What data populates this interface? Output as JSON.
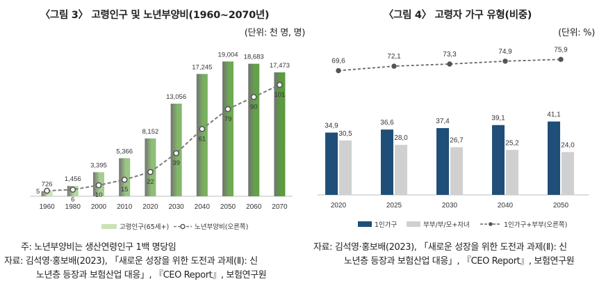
{
  "chart_data": [
    {
      "type": "bar",
      "title": "〈그림 3〉 고령인구 및 노년부양비(1960~2070년)",
      "unit_label": "(단위: 천 명, 명)",
      "categories": [
        "1960",
        "1980",
        "2000",
        "2010",
        "2020",
        "2030",
        "2040",
        "2050",
        "2060",
        "2070"
      ],
      "series": [
        {
          "name": "고령인구(65세+)",
          "type": "bar",
          "axis": "left",
          "values": [
            726,
            1456,
            3395,
            5366,
            8152,
            13056,
            17245,
            19004,
            18683,
            17473
          ],
          "value_labels": [
            "726",
            "1,456",
            "3,395",
            "5,366",
            "8,152",
            "13,056",
            "17,245",
            "19,004",
            "18,683",
            "17,473"
          ]
        },
        {
          "name": "노년부양비(오른쪽)",
          "type": "line",
          "axis": "right",
          "values": [
            5,
            6,
            10,
            15,
            22,
            39,
            61,
            79,
            90,
            101
          ],
          "value_labels": [
            "5",
            "6",
            "10",
            "15",
            "22",
            "39",
            "61",
            "79",
            "90",
            "101"
          ]
        }
      ],
      "ylim_left": [
        0,
        21000
      ],
      "ylim_right": [
        0,
        135
      ],
      "legend": [
        "고령인구(65세+)",
        "노년부양비(오른쪽)"
      ],
      "colors": {
        "bar_light": "#c8e3b4",
        "bar_dark": "#5a9c3e",
        "line": "#7a7a7a",
        "marker_fill": "#ffffff",
        "marker_stroke": "#555555"
      }
    },
    {
      "type": "bar",
      "title": "〈그림 4〉 고령자 가구 유형(비중)",
      "unit_label": "(단위: %)",
      "categories": [
        "2020",
        "2025",
        "2030",
        "2040",
        "2050"
      ],
      "series": [
        {
          "name": "1인가구",
          "type": "bar",
          "values": [
            34.9,
            36.6,
            37.4,
            39.1,
            41.1
          ],
          "value_labels": [
            "34,9",
            "36,6",
            "37,4",
            "39,1",
            "41,1"
          ],
          "color": "#1f4e79"
        },
        {
          "name": "부부/부/모+자녀",
          "type": "bar",
          "values": [
            30.5,
            28.0,
            26.7,
            25.2,
            24.0
          ],
          "value_labels": [
            "30,5",
            "28,0",
            "26,7",
            "25,2",
            "24,0"
          ],
          "color": "#d0d0d0"
        },
        {
          "name": "1인가구+부부(오른쪽)",
          "type": "line",
          "values": [
            69.6,
            72.1,
            73.3,
            74.9,
            75.9
          ],
          "value_labels": [
            "69,6",
            "72,1",
            "73,3",
            "74,9",
            "75,9"
          ],
          "color": "#666666"
        }
      ],
      "ylim": [
        0,
        85
      ],
      "legend": [
        "1인가구",
        "부부/부/모+자녀",
        "1인가구+부부(오른쪽)"
      ]
    }
  ],
  "notes": {
    "left": {
      "line1": "주: 노년부양비는 생산연령인구 1백 명당임",
      "line2": "자료: 김석영·홍보배(2023), 「새로운 성장을 위한 도전과 과제(Ⅱ): 신",
      "line3": "노년층 등장과 보험산업 대응」, 『CEO Report』, 보험연구원"
    },
    "right": {
      "line1": "자료: 김석영·홍보배(2023), 「새로운 성장을 위한 도전과 과제(Ⅱ): 신",
      "line2": "노년층 등장과 보험산업 대응」, 『CEO Report』, 보험연구원"
    }
  }
}
